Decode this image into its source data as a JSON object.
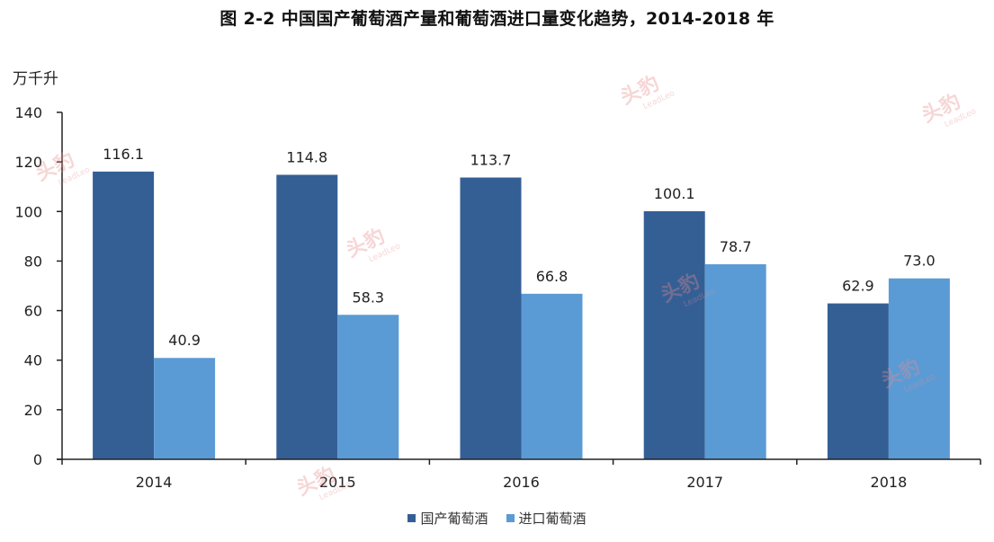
{
  "title": "图 2-2 中国国产葡萄酒产量和葡萄酒进口量变化趋势，2014-2018 年",
  "unit_label": "万千升",
  "legend": [
    {
      "label": "国产葡萄酒",
      "color": "#345f95"
    },
    {
      "label": "进口葡萄酒",
      "color": "#5b9bd5"
    }
  ],
  "watermark": {
    "text": "头豹",
    "subtext": "LeadLeo"
  },
  "chart_data": {
    "type": "bar",
    "title": "图 2-2 中国国产葡萄酒产量和葡萄酒进口量变化趋势，2014-2018 年",
    "xlabel": "",
    "ylabel": "万千升",
    "categories": [
      "2014",
      "2015",
      "2016",
      "2017",
      "2018"
    ],
    "series": [
      {
        "name": "国产葡萄酒",
        "color": "#345f95",
        "values": [
          116.1,
          114.8,
          113.7,
          100.1,
          62.9
        ]
      },
      {
        "name": "进口葡萄酒",
        "color": "#5b9bd5",
        "values": [
          40.9,
          58.3,
          66.8,
          78.7,
          73.0
        ]
      }
    ],
    "ylim": [
      0,
      140
    ],
    "yticks": [
      0,
      20,
      40,
      60,
      80,
      100,
      120,
      140
    ],
    "grid": false,
    "legend_position": "bottom",
    "data_labels": true
  }
}
